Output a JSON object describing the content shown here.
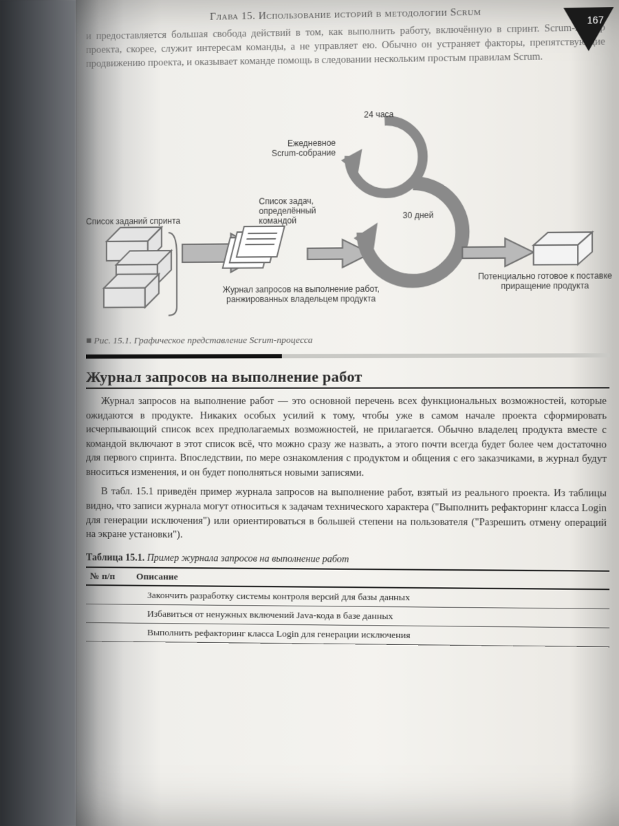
{
  "page": {
    "runningHead": "Глава 15. Использование историй в методологии Scrum",
    "pageNumber": "167",
    "intro": "и предоставляется большая свобода действий в том, как выполнить работу, включённую в спринт. Scrum-мастер проекта, скорее, служит интересам команды, а не управляет ею. Обычно он устраняет факторы, препятствующие продвижению проекта, и оказывает команде помощь в следовании нескольким простым правилам Scrum."
  },
  "diagram": {
    "type": "flowchart",
    "background": "#f2f1ed",
    "arrowFill": "#b9b9b9",
    "arrowStroke": "#6f6f6f",
    "boxFill": "#e4e4e4",
    "boxStroke": "#6f6f6f",
    "lineWidth": 2,
    "labelFontSize": 12,
    "labelColor": "#3a3a3a",
    "labels": {
      "cycleTop": "24 часа",
      "cycleBottom": "30 дней",
      "dailyMeeting": "Ежедневное\nScrum-собрание",
      "teamTaskList": "Список задач,\nопределённый\nкомандой",
      "sprintBacklog": "Список заданий спринта",
      "productBacklog": "Журнал запросов на выполнение работ,\nранжированных владельцем продукта",
      "increment": "Потенциально готовое к поставке\nприращение продукта"
    },
    "figureRef": "Рис. 15.1.",
    "figureCaption": "Графическое представление Scrum-процесса"
  },
  "section": {
    "heading": "Журнал запросов на выполнение работ",
    "para1": "Журнал запросов на выполнение работ — это основной перечень всех функциональных возможностей, которые ожидаются в продукте. Никаких особых усилий к тому, чтобы уже в самом начале проекта сформировать исчерпывающий список всех предполагаемых возможностей, не прилагается. Обычно владелец продукта вместе с командой включают в этот список всё, что можно сразу же назвать, а этого почти всегда будет более чем достаточно для первого спринта. Впоследствии, по мере ознакомления с продуктом и общения с его заказчиками, в журнал будут вноситься изменения, и он будет пополняться новыми записями.",
    "para2": "В табл. 15.1 приведён пример журнала запросов на выполнение работ, взятый из реального проекта. Из таблицы видно, что записи журнала могут относиться к задачам технического характера (\"Выполнить рефакторинг класса Login для генерации исключения\") или ориентироваться в большей степени на пользователя (\"Разрешить отмену операций на экране установки\")."
  },
  "table": {
    "number": "Таблица 15.1.",
    "title": "Пример журнала запросов на выполнение работ",
    "columns": [
      "№ п/п",
      "Описание"
    ],
    "rows": [
      [
        "",
        "Закончить разработку системы контроля версий для базы данных"
      ],
      [
        "",
        "Избавиться от ненужных включений Java-кода в базе данных"
      ],
      [
        "",
        "Выполнить рефакторинг класса Login для генерации исключения"
      ]
    ]
  },
  "colors": {
    "pageBg": "#f3f2ee",
    "text": "#2b2b2b",
    "muted": "#555555",
    "rule": "#222222",
    "badge": "#1a1a1a",
    "badgeText": "#ffffff"
  }
}
